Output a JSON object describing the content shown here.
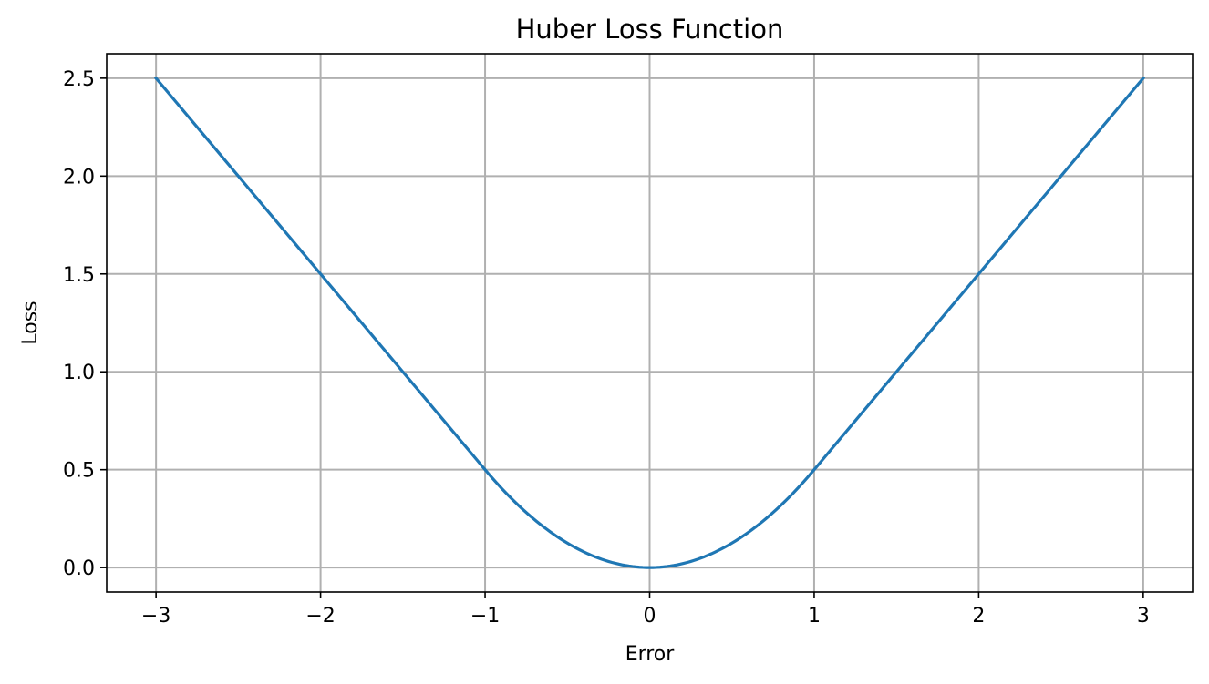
{
  "chart_data": {
    "type": "line",
    "title": "Huber Loss Function",
    "xlabel": "Error",
    "ylabel": "Loss",
    "xlim": [
      -3.3,
      3.3
    ],
    "ylim": [
      -0.125,
      2.625
    ],
    "xticks": [
      -3,
      -2,
      -1,
      0,
      1,
      2,
      3
    ],
    "xtick_labels": [
      "−3",
      "−2",
      "−1",
      "0",
      "1",
      "2",
      "3"
    ],
    "yticks": [
      0.0,
      0.5,
      1.0,
      1.5,
      2.0,
      2.5
    ],
    "ytick_labels": [
      "0.0",
      "0.5",
      "1.0",
      "1.5",
      "2.0",
      "2.5"
    ],
    "grid": true,
    "legend": "none",
    "series": [
      {
        "color": "#1f77b4",
        "x": [
          -3.0,
          -2.5,
          -2.0,
          -1.5,
          -1.0,
          -0.75,
          -0.5,
          -0.25,
          0.0,
          0.25,
          0.5,
          0.75,
          1.0,
          1.5,
          2.0,
          2.5,
          3.0
        ],
        "y": [
          2.5,
          2.0,
          1.5,
          1.0,
          0.5,
          0.28125,
          0.125,
          0.03125,
          0.0,
          0.03125,
          0.125,
          0.28125,
          0.5,
          1.0,
          1.5,
          2.0,
          2.5
        ]
      }
    ]
  }
}
